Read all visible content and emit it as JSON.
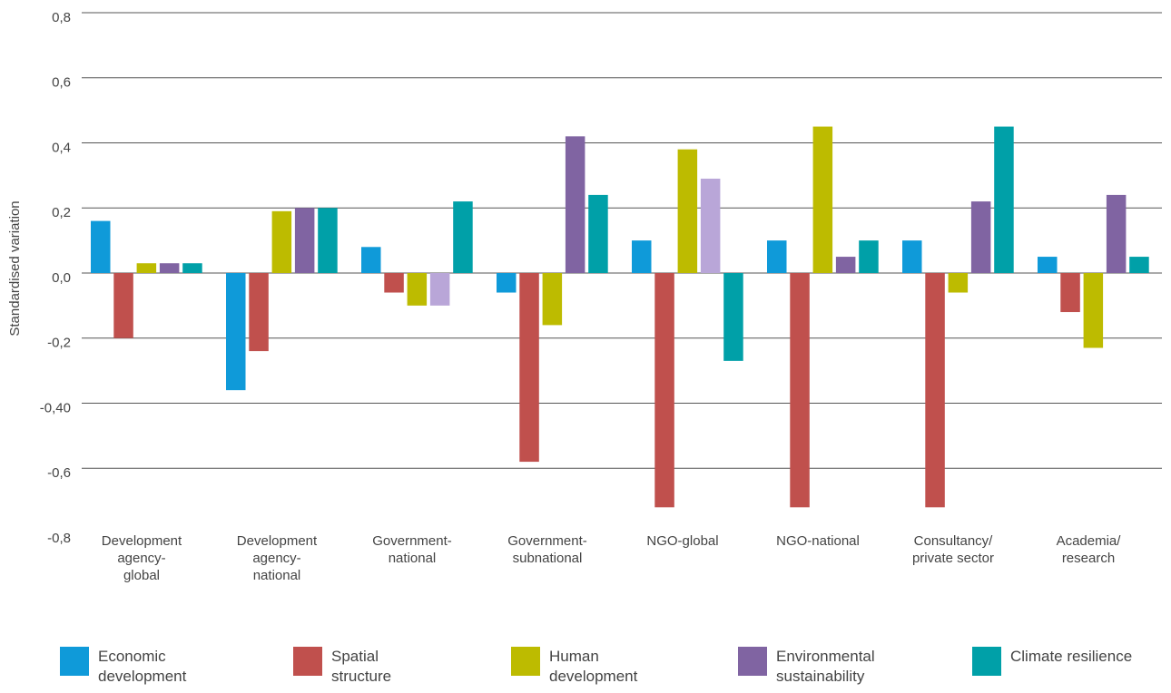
{
  "chart_data": {
    "type": "bar",
    "y_label": "Standardised variation",
    "categories": [
      [
        "Development",
        "agency-",
        "global"
      ],
      [
        "Development",
        "agency-",
        "national"
      ],
      [
        "Government-",
        "national"
      ],
      [
        "Government-",
        "subnational"
      ],
      [
        "NGO-global"
      ],
      [
        "NGO-national"
      ],
      [
        "Consultancy/",
        "private sector"
      ],
      [
        "Academia/",
        "research"
      ]
    ],
    "series": [
      {
        "name": "Economic development",
        "color": "#0f9ad9",
        "values": [
          0.16,
          -0.36,
          0.08,
          -0.06,
          0.1,
          0.1,
          0.1,
          0.05
        ]
      },
      {
        "name": "Spatial structure",
        "color": "#c0504d",
        "values": [
          -0.2,
          -0.24,
          -0.06,
          -0.58,
          -0.72,
          -0.72,
          -0.72,
          -0.12
        ]
      },
      {
        "name": "Human development",
        "color": "#bdbb00",
        "values": [
          0.03,
          0.19,
          -0.1,
          -0.16,
          0.38,
          0.45,
          -0.06,
          -0.23
        ]
      },
      {
        "name": "Environmental sustainability",
        "color": "#8064a2",
        "values": [
          0.03,
          0.2,
          -0.1,
          0.42,
          0.29,
          0.05,
          0.22,
          0.24
        ],
        "point_colors": [
          "#8064a2",
          "#8064a2",
          "#b9a6d8",
          "#8064a2",
          "#b9a6d8",
          "#8064a2",
          "#8064a2",
          "#8064a2"
        ]
      },
      {
        "name": "Climate resilience",
        "color": "#00a0a8",
        "values": [
          0.03,
          0.2,
          0.22,
          0.24,
          -0.27,
          0.1,
          0.45,
          0.05
        ]
      }
    ],
    "ylim": [
      -0.8,
      0.8
    ],
    "yticks": [
      {
        "value": -0.8,
        "label": "-0,8"
      },
      {
        "value": -0.6,
        "label": "-0,6"
      },
      {
        "value": -0.4,
        "label": "-0,40"
      },
      {
        "value": -0.2,
        "label": "-0,2"
      },
      {
        "value": 0,
        "label": "0,0"
      },
      {
        "value": 0.2,
        "label": "0,2"
      },
      {
        "value": 0.4,
        "label": "0,4"
      },
      {
        "value": 0.6,
        "label": "0,6"
      },
      {
        "value": 0.8,
        "label": "0,8"
      }
    ],
    "grid": true
  }
}
